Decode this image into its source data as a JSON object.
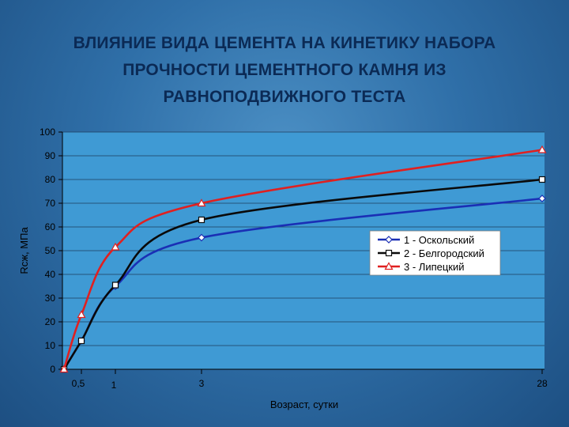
{
  "chart_data": {
    "type": "line",
    "title": "ВЛИЯНИЕ ВИДА ЦЕМЕНТА НА КИНЕТИКУ НАБОРА ПРОЧНОСТИ ЦЕМЕНТНОГО КАМНЯ ИЗ РАВНОПОДВИЖНОГО ТЕСТА",
    "title_lines": [
      "ВЛИЯНИЕ ВИДА ЦЕМЕНТА НА КИНЕТИКУ НАБОРА",
      "ПРОЧНОСТИ ЦЕМЕНТНОГО КАМНЯ ИЗ",
      "РАВНОПОДВИЖНОГО ТЕСТА"
    ],
    "xlabel": "Возраст, сутки",
    "ylabel": "Rсж, МПа",
    "ylim": [
      0,
      100
    ],
    "yticks": [
      0,
      10,
      20,
      30,
      40,
      50,
      60,
      70,
      80,
      90,
      100
    ],
    "x_categories": [
      "0",
      "0,5",
      "1",
      "3",
      "28"
    ],
    "xtick_labels": [
      "0,5",
      "1",
      "3",
      "28"
    ],
    "grid": true,
    "legend_position": "right-center",
    "series": [
      {
        "name": "1 - Оскольский",
        "color": "#1a2fb5",
        "marker": "diamond",
        "values": [
          0,
          12,
          35,
          55.5,
          72
        ]
      },
      {
        "name": "2 - Белгородский",
        "color": "#0a0a0a",
        "marker": "square",
        "values": [
          0,
          12,
          35.5,
          63,
          80
        ]
      },
      {
        "name": "3 - Липецкий",
        "color": "#e02020",
        "marker": "triangle",
        "values": [
          0,
          23,
          51.5,
          70,
          92.5
        ]
      }
    ]
  }
}
